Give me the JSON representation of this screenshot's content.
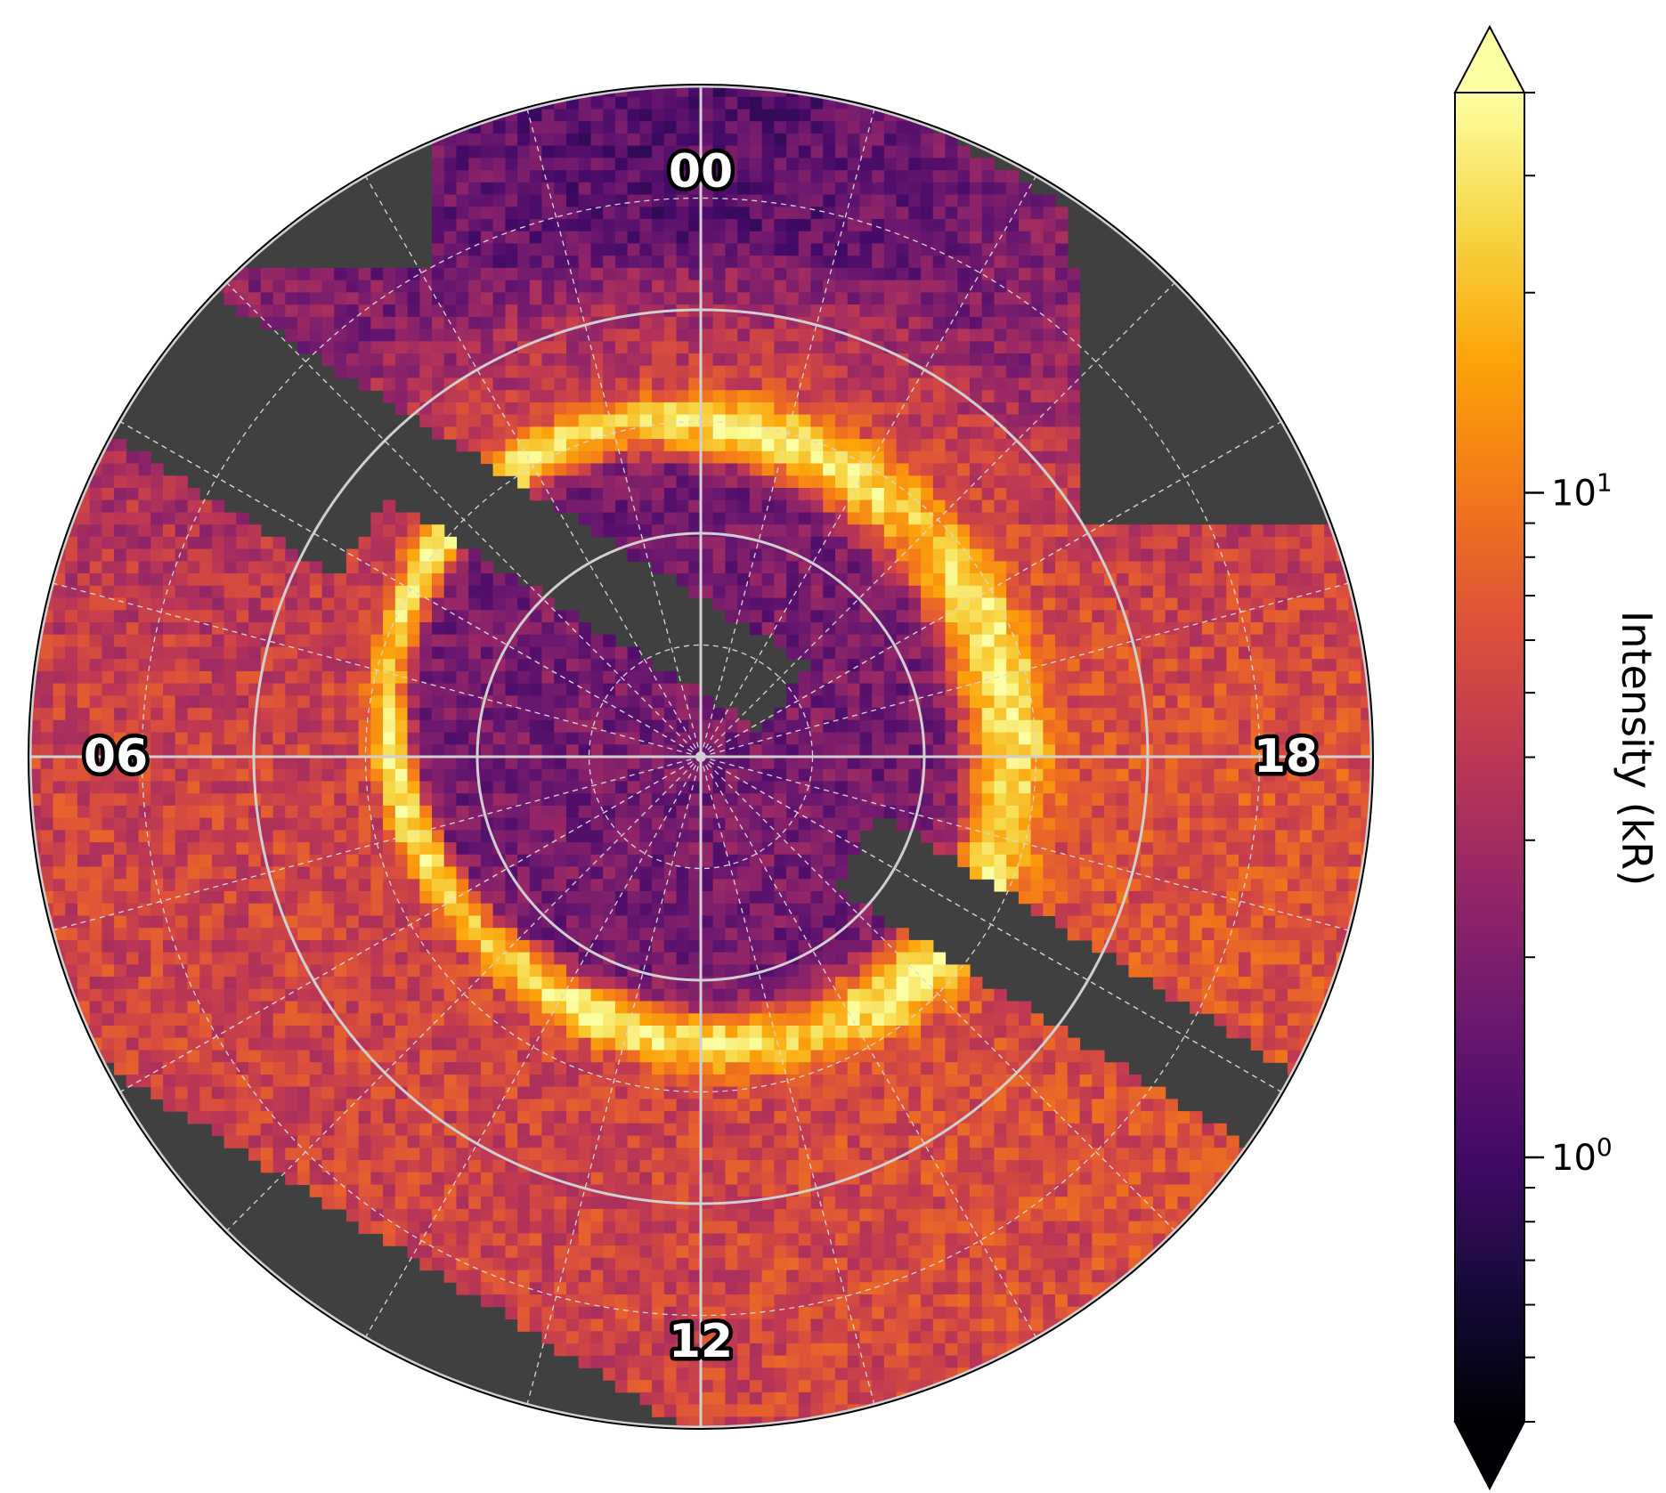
{
  "chart_data": {
    "type": "heatmap",
    "projection": "polar",
    "title": "",
    "angular_labels": [
      "00",
      "06",
      "12",
      "18"
    ],
    "radial_ring_count": 3,
    "grid": true,
    "background_color": "#404040",
    "colormap": "inferno",
    "colorbar": {
      "label": "Intensity (kR)",
      "scale": "log",
      "range": [
        0.4,
        40
      ],
      "extend": "both",
      "major_ticks": [
        {
          "value": 1,
          "base": "10",
          "exp": "0"
        },
        {
          "value": 10,
          "base": "10",
          "exp": "1"
        }
      ],
      "minor_ticks": [
        0.4,
        0.5,
        0.6,
        0.7,
        0.8,
        0.9,
        2,
        3,
        4,
        5,
        6,
        7,
        8,
        9,
        20,
        30,
        40
      ],
      "position": "right"
    },
    "main_oval_peak_kR": 30,
    "inner_region_kR": 1.8,
    "outer_region_kR": 5
  }
}
